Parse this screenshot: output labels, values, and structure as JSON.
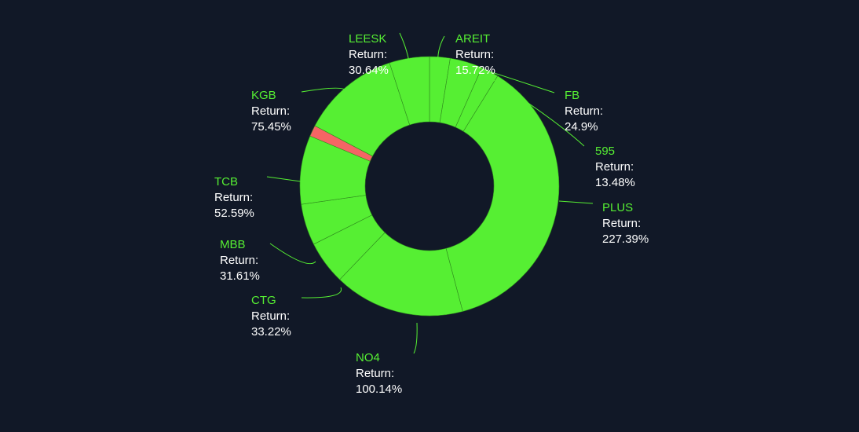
{
  "chart_data": {
    "type": "pie",
    "variant": "donut",
    "value_label": "Return:",
    "value_suffix": "%",
    "colors": {
      "positive": "#56ef33",
      "negative": "#f56565",
      "background": "#111827",
      "slice_border": "#2f8a1e",
      "leader_line": "#56ef33",
      "label_name": "#56ef33",
      "label_text": "#ffffff"
    },
    "slices": [
      {
        "name": "AREIT",
        "value": 15.72,
        "color": "#56ef33"
      },
      {
        "name": "FB",
        "value": 24.9,
        "color": "#56ef33"
      },
      {
        "name": "595",
        "value": 13.48,
        "color": "#56ef33"
      },
      {
        "name": "PLUS",
        "value": 227.39,
        "color": "#56ef33"
      },
      {
        "name": "NO4",
        "value": 100.14,
        "color": "#56ef33"
      },
      {
        "name": "CTG",
        "value": 33.22,
        "color": "#56ef33"
      },
      {
        "name": "MBB",
        "value": 31.61,
        "color": "#56ef33"
      },
      {
        "name": "TCB",
        "value": 52.59,
        "color": "#56ef33"
      },
      {
        "name": "",
        "value": 8.5,
        "color": "#f56565"
      },
      {
        "name": "KGB",
        "value": 75.45,
        "color": "#56ef33"
      },
      {
        "name": "LEESK",
        "value": 30.64,
        "color": "#56ef33"
      }
    ]
  }
}
